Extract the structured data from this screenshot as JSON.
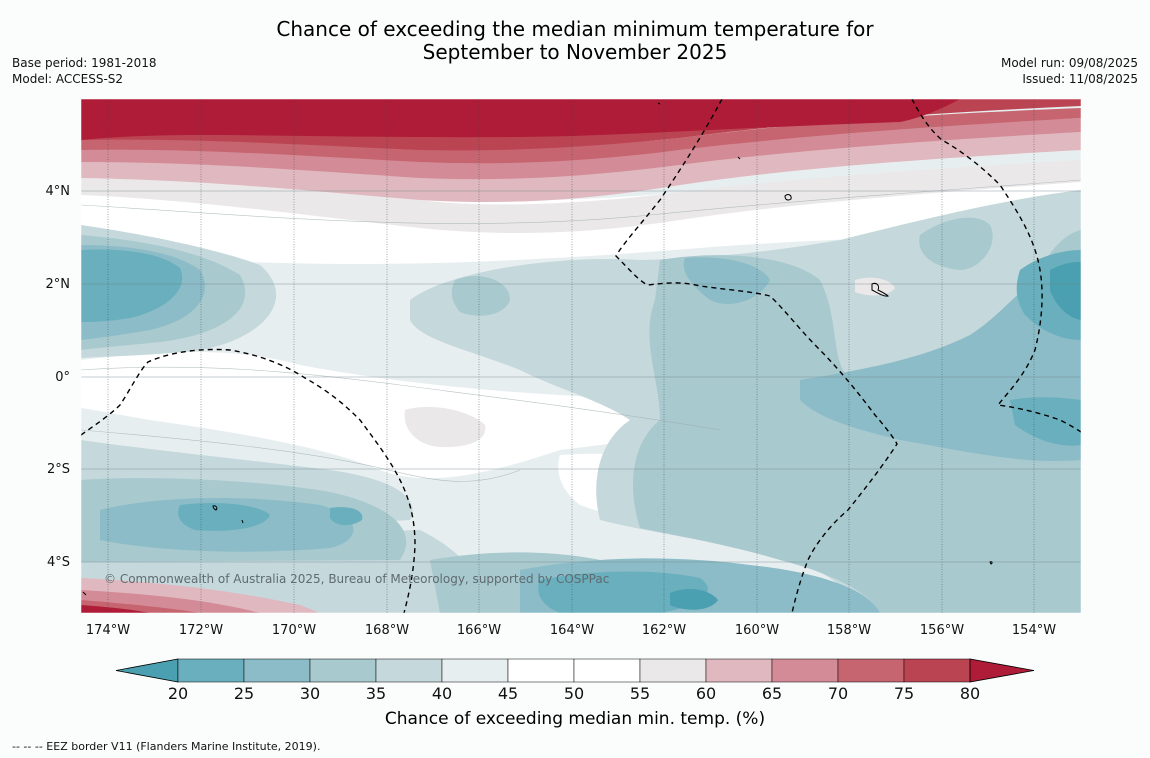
{
  "header": {
    "title_line1": "Chance of exceeding the median minimum temperature for",
    "title_line2": "September to November 2025",
    "base_period": "Base period: 1981-2018",
    "model": "Model: ACCESS-S2",
    "model_run": "Model run: 09/08/2025",
    "issued": "Issued: 11/08/2025"
  },
  "map": {
    "lat_labels": [
      "4°N",
      "2°N",
      "0°",
      "2°S",
      "4°S"
    ],
    "lon_labels": [
      "174°W",
      "172°W",
      "170°W",
      "168°W",
      "166°W",
      "164°W",
      "162°W",
      "160°W",
      "158°W",
      "156°W",
      "154°W"
    ],
    "credit": "© Commonwealth of Australia 2025, Bureau of Meteorology, supported by COSPPac"
  },
  "colorbar": {
    "ticks": [
      "20",
      "25",
      "30",
      "35",
      "40",
      "45",
      "50",
      "55",
      "60",
      "65",
      "70",
      "75",
      "80"
    ],
    "colors": [
      "#4a9fb0",
      "#6aafbd",
      "#8cbcc7",
      "#a8c9ce",
      "#c5d8dc",
      "#e7eef0",
      "#ffffff",
      "#ffffff",
      "#ebe8e9",
      "#e0b8bf",
      "#d38c97",
      "#c6656f",
      "#bb4452",
      "#ae1c37"
    ],
    "title": "Chance of exceeding median min. temp. (%)"
  },
  "legend": {
    "footnote": "--  --  -- EEZ border V11 (Flanders Marine Institute, 2019)."
  }
}
